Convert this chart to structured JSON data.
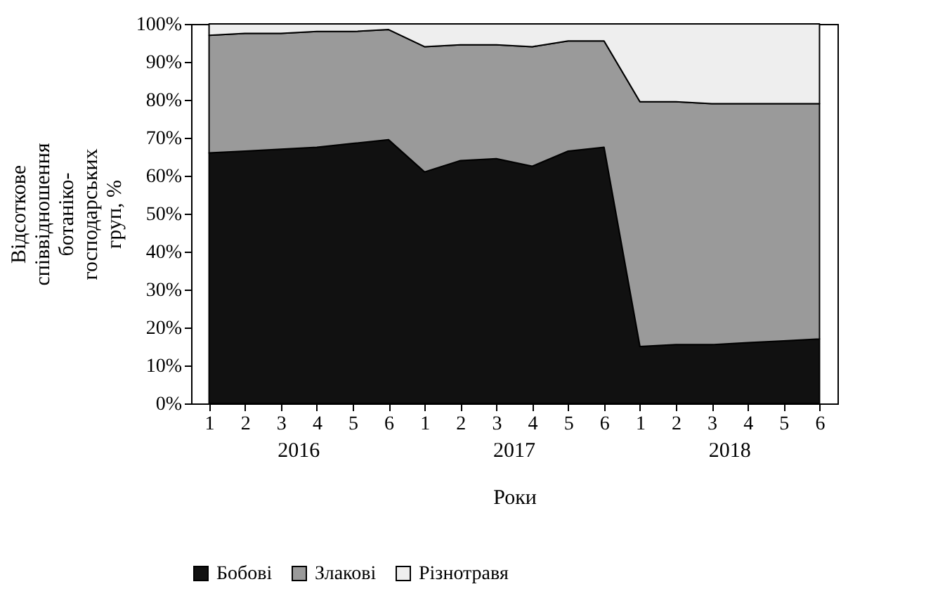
{
  "chart_data": {
    "type": "area",
    "stacked": true,
    "xlabel": "Роки",
    "ylabel": "Відсоткове співвідношення ботаніко-господарських груп, %",
    "categories": [
      "1",
      "2",
      "3",
      "4",
      "5",
      "6",
      "1",
      "2",
      "3",
      "4",
      "5",
      "6",
      "1",
      "2",
      "3",
      "4",
      "5",
      "6"
    ],
    "annotations": [
      "2016",
      "2017",
      "2018"
    ],
    "series": [
      {
        "name": "Бобові",
        "color": "#111111",
        "values": [
          66,
          66.5,
          67,
          67.5,
          68.5,
          69.5,
          61,
          64,
          64.5,
          62.5,
          66.5,
          67.5,
          15,
          15.5,
          15.5,
          16,
          16.5,
          17
        ]
      },
      {
        "name": "Злакові",
        "color": "#9a9a9a",
        "values": [
          31,
          31,
          30.5,
          30.5,
          29.5,
          29,
          33,
          30.5,
          30,
          31.5,
          29,
          28,
          64.5,
          64,
          63.5,
          63,
          62.5,
          62
        ]
      },
      {
        "name": "Різнотравя",
        "color": "#eeeeee",
        "values": [
          3,
          2.5,
          2.5,
          2,
          2,
          1.5,
          6,
          5.5,
          5.5,
          6,
          4.5,
          4.5,
          20.5,
          20.5,
          21,
          21,
          21,
          21
        ]
      }
    ],
    "ylim": [
      0,
      100
    ],
    "yticks": [
      {
        "value": 0,
        "label": "0%"
      },
      {
        "value": 10,
        "label": "10%"
      },
      {
        "value": 20,
        "label": "20%"
      },
      {
        "value": 30,
        "label": "30%"
      },
      {
        "value": 40,
        "label": "40%"
      },
      {
        "value": 50,
        "label": "50%"
      },
      {
        "value": 60,
        "label": "60%"
      },
      {
        "value": 70,
        "label": "70%"
      },
      {
        "value": 80,
        "label": "80%"
      },
      {
        "value": 90,
        "label": "90%"
      },
      {
        "value": 100,
        "label": "100%"
      }
    ],
    "legend": "bottom",
    "grid": false
  }
}
